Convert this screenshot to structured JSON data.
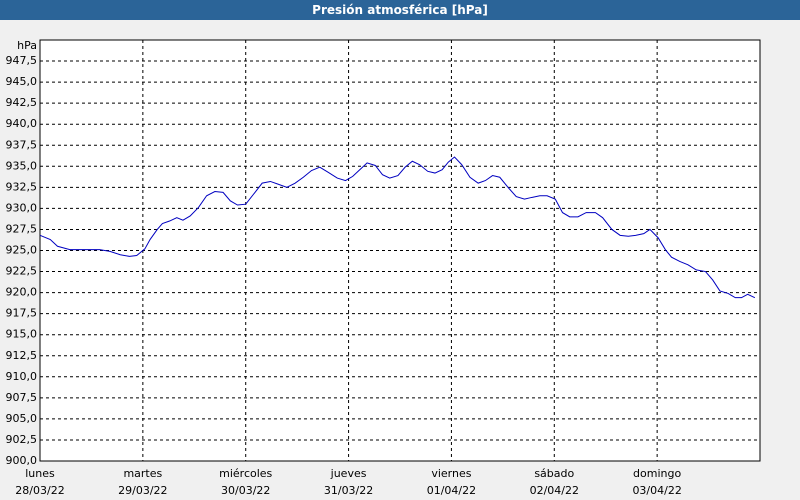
{
  "chart_data": {
    "type": "line",
    "title": "Presión atmosférica [hPa]",
    "y_unit": "hPa",
    "xlim": [
      0,
      7
    ],
    "xticks": [
      0,
      1,
      2,
      3,
      4,
      5,
      6
    ],
    "x_tick_labels": [
      {
        "day": "lunes",
        "date": "28/03/22"
      },
      {
        "day": "martes",
        "date": "29/03/22"
      },
      {
        "day": "miércoles",
        "date": "30/03/22"
      },
      {
        "day": "jueves",
        "date": "31/03/22"
      },
      {
        "day": "viernes",
        "date": "01/04/22"
      },
      {
        "day": "sábado",
        "date": "02/04/22"
      },
      {
        "day": "domingo",
        "date": "03/04/22"
      }
    ],
    "ylim": [
      900,
      950
    ],
    "yticks": [
      {
        "value": 900,
        "label": "900,0"
      },
      {
        "value": 902.5,
        "label": "902,5"
      },
      {
        "value": 905,
        "label": "905,0"
      },
      {
        "value": 907.5,
        "label": "907,5"
      },
      {
        "value": 910,
        "label": "910,0"
      },
      {
        "value": 912.5,
        "label": "912,5"
      },
      {
        "value": 915,
        "label": "915,0"
      },
      {
        "value": 917.5,
        "label": "917,5"
      },
      {
        "value": 920,
        "label": "920,0"
      },
      {
        "value": 922.5,
        "label": "922,5"
      },
      {
        "value": 925,
        "label": "925,0"
      },
      {
        "value": 927.5,
        "label": "927,5"
      },
      {
        "value": 930,
        "label": "930,0"
      },
      {
        "value": 932.5,
        "label": "932,5"
      },
      {
        "value": 935,
        "label": "935,0"
      },
      {
        "value": 937.5,
        "label": "937,5"
      },
      {
        "value": 940,
        "label": "940,0"
      },
      {
        "value": 942.5,
        "label": "942,5"
      },
      {
        "value": 945,
        "label": "945,0"
      },
      {
        "value": 947.5,
        "label": "947,5"
      }
    ],
    "grid": true,
    "color": "#0000c0",
    "x": [
      0,
      0.1,
      0.17,
      0.29,
      0.44,
      0.58,
      0.68,
      0.78,
      0.87,
      0.94,
      1.02,
      1.07,
      1.14,
      1.19,
      1.26,
      1.33,
      1.39,
      1.46,
      1.54,
      1.62,
      1.7,
      1.78,
      1.85,
      1.92,
      2.0,
      2.09,
      2.16,
      2.24,
      2.31,
      2.4,
      2.48,
      2.56,
      2.64,
      2.72,
      2.8,
      2.89,
      2.97,
      3.04,
      3.11,
      3.18,
      3.26,
      3.33,
      3.4,
      3.48,
      3.55,
      3.62,
      3.69,
      3.77,
      3.84,
      3.91,
      3.97,
      4.03,
      4.1,
      4.18,
      4.26,
      4.33,
      4.4,
      4.47,
      4.55,
      4.63,
      4.71,
      4.78,
      4.86,
      4.93,
      5.01,
      5.08,
      5.15,
      5.23,
      5.31,
      5.4,
      5.47,
      5.56,
      5.64,
      5.72,
      5.79,
      5.87,
      5.93,
      6.01,
      6.08,
      6.14,
      6.22,
      6.3,
      6.38,
      6.47,
      6.54,
      6.61,
      6.69,
      6.76,
      6.82,
      6.88,
      6.95
    ],
    "values": [
      926.8,
      926.3,
      925.5,
      925.1,
      925.1,
      925.1,
      924.9,
      924.5,
      924.3,
      924.4,
      925.2,
      926.3,
      927.5,
      928.2,
      928.5,
      928.9,
      928.6,
      929.1,
      930.1,
      931.5,
      932.0,
      931.9,
      930.9,
      930.4,
      930.5,
      931.9,
      933.0,
      933.2,
      932.9,
      932.5,
      933.0,
      933.7,
      934.5,
      934.9,
      934.3,
      933.6,
      933.3,
      933.8,
      934.6,
      935.4,
      935.1,
      934.0,
      933.6,
      933.9,
      934.9,
      935.6,
      935.2,
      934.4,
      934.2,
      934.6,
      935.5,
      936.1,
      935.2,
      933.7,
      933.0,
      933.3,
      933.9,
      933.7,
      932.5,
      931.4,
      931.1,
      931.3,
      931.5,
      931.5,
      931.1,
      929.5,
      929.0,
      929.0,
      929.5,
      929.5,
      928.9,
      927.5,
      926.8,
      926.7,
      926.8,
      927.0,
      927.5,
      926.5,
      925.1,
      924.2,
      923.7,
      923.3,
      922.7,
      922.5,
      921.5,
      920.2,
      919.9,
      919.4,
      919.4,
      919.8,
      919.4
    ]
  }
}
